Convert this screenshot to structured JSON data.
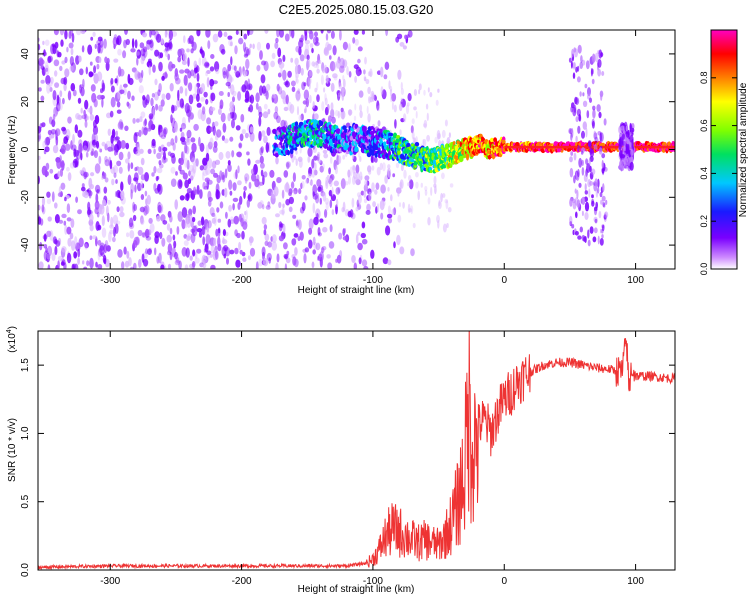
{
  "figure": {
    "title": "C2E5.2025.080.15.03.G20"
  },
  "chart_data": [
    {
      "type": "heatmap",
      "title": "",
      "xlabel": "Height of straight line (km)",
      "ylabel": "Frequency (Hz)",
      "xlim": [
        -355,
        130
      ],
      "ylim": [
        -50,
        50
      ],
      "xticks": [
        -300,
        -200,
        -100,
        0,
        100
      ],
      "yticks": [
        -40,
        -20,
        0,
        20,
        40
      ],
      "colorbar": {
        "label": "Normalized spectral amplitude",
        "range": [
          0,
          1
        ],
        "ticks": [
          "0.0",
          "0.2",
          "0.4",
          "0.6",
          "0.8"
        ],
        "colors": [
          "#ffffff",
          "#cc88ff",
          "#7a00ff",
          "#1a1aff",
          "#00c8ff",
          "#00e060",
          "#80ff00",
          "#ffff00",
          "#ff8000",
          "#ff0000",
          "#ff00c0"
        ]
      },
      "noise_region_x": [
        -355,
        -110
      ],
      "ridge": {
        "x": [
          -175,
          -150,
          -130,
          -110,
          -95,
          -80,
          -65,
          -55,
          -45,
          -35,
          -25,
          -18,
          -12,
          -5,
          0,
          10,
          20,
          40,
          60,
          80,
          100,
          130
        ],
        "y": [
          2,
          7,
          5,
          4,
          3,
          0,
          -3,
          -5,
          -3,
          -1,
          1,
          3,
          0,
          1,
          1,
          1,
          1,
          1,
          1,
          1,
          1,
          1
        ],
        "amplitude": [
          0.3,
          0.45,
          0.35,
          0.3,
          0.35,
          0.45,
          0.5,
          0.55,
          0.6,
          0.7,
          0.8,
          0.85,
          0.8,
          0.85,
          0.9,
          0.9,
          0.9,
          0.95,
          0.95,
          0.95,
          1.0,
          1.0
        ]
      },
      "bursts": [
        {
          "x_range": [
            50,
            78
          ],
          "y_range": [
            -40,
            43
          ]
        },
        {
          "x_range": [
            88,
            98
          ],
          "y_range": [
            -8,
            10
          ]
        }
      ]
    },
    {
      "type": "line",
      "title": "",
      "xlabel": "Height of straight line (km)",
      "ylabel": "SNR (10 * v/v)",
      "scale_label": "(x10",
      "scale_exp": "4",
      "scale_close": ")",
      "xlim": [
        -355,
        130
      ],
      "ylim": [
        0,
        1.75
      ],
      "xticks": [
        -300,
        -200,
        -100,
        0,
        100
      ],
      "yticks": [
        0.0,
        0.5,
        1.0,
        1.5
      ],
      "ytick_labels": [
        "0.0",
        "0.5",
        "1.0",
        "1.5"
      ],
      "color": "#ee3333",
      "series": [
        {
          "x": [
            -355,
            -300,
            -250,
            -200,
            -150,
            -120,
            -105,
            -100,
            -95,
            -90,
            -85,
            -80,
            -75,
            -70,
            -65,
            -60,
            -55,
            -50,
            -45,
            -40,
            -35,
            -30,
            -27,
            -25,
            -22,
            -20,
            -15,
            -10,
            -5,
            0,
            5,
            10,
            20,
            30,
            40,
            50,
            60,
            70,
            80,
            85,
            90,
            93,
            95,
            97,
            100,
            110,
            120,
            130
          ],
          "y": [
            0.02,
            0.03,
            0.03,
            0.03,
            0.03,
            0.03,
            0.05,
            0.08,
            0.15,
            0.25,
            0.3,
            0.28,
            0.25,
            0.22,
            0.2,
            0.22,
            0.2,
            0.18,
            0.25,
            0.35,
            0.5,
            0.75,
            1.2,
            1.0,
            0.9,
            1.05,
            1.1,
            1.0,
            1.15,
            1.25,
            1.3,
            1.38,
            1.45,
            1.5,
            1.52,
            1.52,
            1.5,
            1.48,
            1.47,
            1.46,
            1.45,
            1.7,
            1.3,
            1.5,
            1.42,
            1.42,
            1.41,
            1.4
          ]
        }
      ]
    }
  ]
}
